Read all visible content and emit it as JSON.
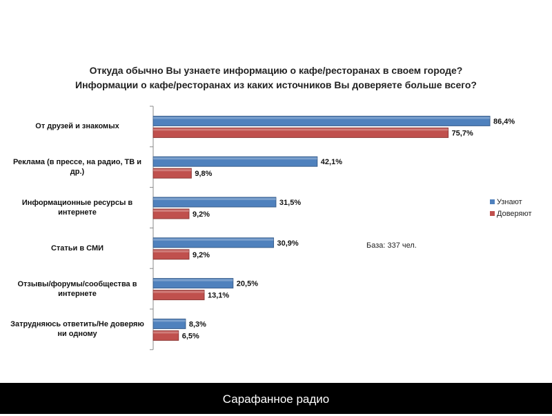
{
  "chart_data": {
    "type": "bar",
    "orientation": "horizontal",
    "title": [
      "Откуда обычно Вы узнаете информацию о кафе/ресторанах в своем городе?",
      "Информации о кафе/ресторанах из каких источников Вы доверяете больше всего?"
    ],
    "categories": [
      "От друзей и знакомых",
      "Реклама (в прессе, на радио, ТВ и др.)",
      "Информационные ресурсы в интернете",
      "Статьи в СМИ",
      "Отзывы/форумы/сообщества в интернете",
      "Затрудняюсь ответить/Не доверяю ни одному"
    ],
    "series": [
      {
        "name": "Узнают",
        "color": "#4f81bd",
        "values": [
          86.4,
          42.1,
          31.5,
          30.9,
          20.5,
          8.3
        ],
        "labels": [
          "86,4%",
          "42,1%",
          "31,5%",
          "30,9%",
          "20,5%",
          "8,3%"
        ]
      },
      {
        "name": "Доверяют",
        "color": "#c0504d",
        "values": [
          75.7,
          9.8,
          9.2,
          9.2,
          13.1,
          6.5
        ],
        "labels": [
          "75,7%",
          "9,8%",
          "9,2%",
          "9,2%",
          "13,1%",
          "6,5%"
        ]
      }
    ],
    "xlim": [
      0,
      100
    ],
    "grid": false,
    "legend": "right",
    "annotation": "База: 337 чел."
  },
  "footer": "Сарафанное радио"
}
